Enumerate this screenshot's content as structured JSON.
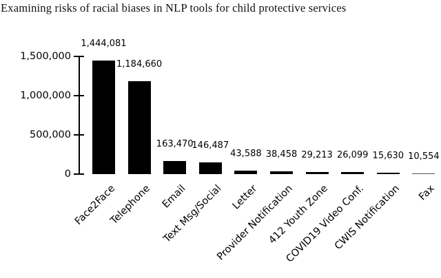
{
  "title": "Examining risks of racial biases in NLP tools for child protective services",
  "colors": {
    "background": "#ffffff",
    "bar": "#000000",
    "thin_bar": "#555555",
    "axis": "#000000",
    "text": "#000000",
    "title_text": "#111111"
  },
  "chart_data": {
    "type": "bar",
    "title": "Examining risks of racial biases in NLP tools for child protective services",
    "categories": [
      "Face2Face",
      "Telephone",
      "Email",
      "Text Msg/Social",
      "Letter",
      "Provider Notification",
      "412 Youth Zone",
      "COVID19 Video Conf.",
      "CWIS Notification",
      "Fax"
    ],
    "values": [
      1444081,
      1184660,
      163470,
      146487,
      43588,
      38458,
      29213,
      26099,
      15630,
      10554
    ],
    "value_labels": [
      "1,444,081",
      "1,184,660",
      "163,470",
      "146,487",
      "43,588",
      "38,458",
      "29,213",
      "26,099",
      "15,630",
      "10,554"
    ],
    "yticks": [
      {
        "value": 0,
        "label": "0"
      },
      {
        "value": 500000,
        "label": "500,000"
      },
      {
        "value": 1000000,
        "label": "1,000,000"
      },
      {
        "value": 1500000,
        "label": "1,500,000"
      }
    ],
    "ylim": [
      0,
      1500000
    ],
    "xlabel": "",
    "ylabel": "",
    "grid": false,
    "legend": "none",
    "bar_orientation": "vertical",
    "xtick_label_rotation_deg": 45
  }
}
